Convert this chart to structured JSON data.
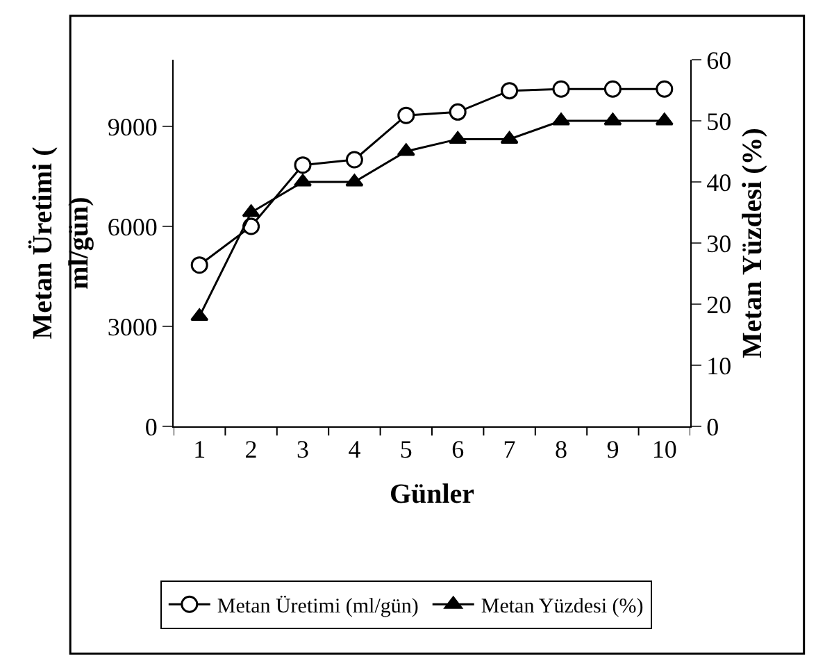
{
  "chart_data": {
    "type": "line",
    "xlabel": "Günler",
    "ylabel": "Metan Üretimi (\nml/gün)",
    "y2label": "Metan Yüzdesi (%)",
    "categories": [
      "1",
      "2",
      "3",
      "4",
      "5",
      "6",
      "7",
      "8",
      "9",
      "10"
    ],
    "series": [
      {
        "name": "Metan Üretimi (ml/gün)",
        "color": "#000000",
        "marker": "circle",
        "values": [
          4840,
          6000,
          7840,
          8000,
          9330,
          9430,
          10070,
          10120,
          10120,
          10120
        ]
      },
      {
        "name": "Metan Yüzdesi (%)",
        "color": "#000000",
        "marker": "triangle",
        "axis": "y2",
        "values": [
          18,
          35,
          40,
          40,
          45,
          47,
          47,
          50,
          50,
          50
        ]
      }
    ],
    "ylim": [
      0,
      11000
    ],
    "yticks": [
      0,
      3000,
      6000,
      9000
    ],
    "y2lim": [
      0,
      60
    ],
    "y2ticks": [
      0,
      10,
      20,
      30,
      40,
      50,
      60
    ],
    "legend": "bottom"
  }
}
